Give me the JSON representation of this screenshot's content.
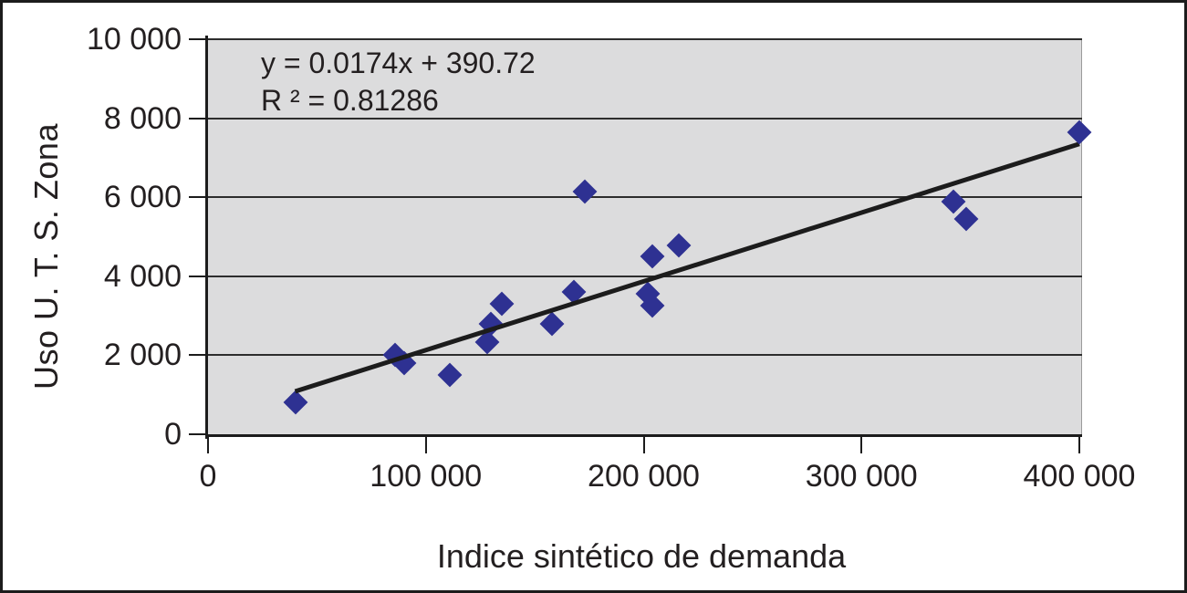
{
  "chart_data": {
    "type": "scatter",
    "title": "",
    "xlabel": "Indice sintético de demanda",
    "ylabel": "Uso U. T. S. Zona",
    "annotations": [
      "y = 0.0174x + 390.72",
      "R ² = 0.81286"
    ],
    "xlim": [
      0,
      400000
    ],
    "ylim": [
      0,
      10000
    ],
    "grid": "horizontal",
    "legend": "none",
    "x_ticks": [
      {
        "value": 0,
        "label": "0"
      },
      {
        "value": 100000,
        "label": "100 000"
      },
      {
        "value": 200000,
        "label": "200 000"
      },
      {
        "value": 300000,
        "label": "300 000"
      },
      {
        "value": 400000,
        "label": "400 000"
      }
    ],
    "y_ticks": [
      {
        "value": 0,
        "label": "0"
      },
      {
        "value": 2000,
        "label": "2 000"
      },
      {
        "value": 4000,
        "label": "4 000"
      },
      {
        "value": 6000,
        "label": "6 000"
      },
      {
        "value": 8000,
        "label": "8 000"
      },
      {
        "value": 10000,
        "label": "10 000"
      }
    ],
    "points": [
      [
        40000,
        800
      ],
      [
        86000,
        2000
      ],
      [
        90000,
        1800
      ],
      [
        111000,
        1500
      ],
      [
        128000,
        2330
      ],
      [
        130000,
        2800
      ],
      [
        135000,
        3300
      ],
      [
        158000,
        2800
      ],
      [
        168000,
        3600
      ],
      [
        173000,
        6150
      ],
      [
        202000,
        3550
      ],
      [
        204000,
        3250
      ],
      [
        204000,
        4500
      ],
      [
        216000,
        4780
      ],
      [
        342000,
        5900
      ],
      [
        348000,
        5450
      ],
      [
        400000,
        7650
      ]
    ],
    "trendline": {
      "x1": 40000,
      "y1": 1086,
      "x2": 400000,
      "y2": 7351
    },
    "colors": {
      "marker": "#2e3192",
      "plot_bg": "#dcdcdd",
      "trendline": "#1c1c1c",
      "grid": "#2d2d2d",
      "text": "#231f20"
    }
  }
}
